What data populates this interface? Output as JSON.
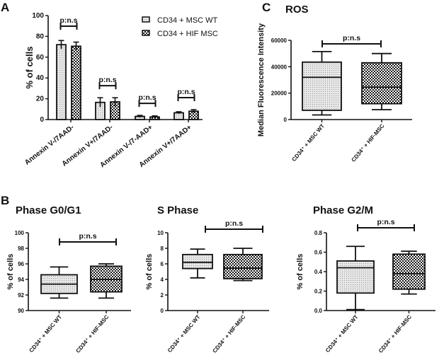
{
  "panel_labels": {
    "A": "A",
    "B": "B",
    "C": "C"
  },
  "colors": {
    "ink": "#111111",
    "wt_fill": "#d9d9d9",
    "hif_fill": "#1a1a1a"
  },
  "chart_data": [
    {
      "id": "A",
      "type": "bar",
      "title": "",
      "ylabel": "% of cells",
      "xlabel": "",
      "ylim": [
        0,
        100
      ],
      "yticks": [
        0,
        20,
        40,
        60,
        80,
        100
      ],
      "categories": [
        "Annexin V-/7AAD-",
        "Annexin V+/7AAD-",
        "Annexin V-/7-AAD+",
        "Annexin V+/7AAD+"
      ],
      "series": [
        {
          "name": "CD34 + MSC WT",
          "pattern": "dotted-gray",
          "values": [
            72,
            16.5,
            3,
            6.5
          ],
          "errors": [
            4,
            4.5,
            1,
            1
          ]
        },
        {
          "name": "CD34 + HIF MSC",
          "pattern": "checkerboard",
          "values": [
            70.5,
            17,
            2.5,
            8
          ],
          "errors": [
            4,
            4,
            1,
            1.5
          ]
        }
      ],
      "annotations": [
        "p:n.s",
        "p:n.s",
        "p:n.s",
        "p:n.s"
      ],
      "legend": "top-right",
      "grid": false
    },
    {
      "id": "C",
      "type": "box",
      "title": "ROS",
      "ylabel": "Median Fluorescence Intensity",
      "ylim": [
        0,
        60000
      ],
      "yticks": [
        0,
        20000,
        40000,
        60000
      ],
      "categories": [
        "CD34⁺ + MSC WT",
        "CD34⁺ + HIF-MSC"
      ],
      "boxes": [
        {
          "min": 3500,
          "q1": 7000,
          "median": 32000,
          "q3": 43500,
          "max": 51500
        },
        {
          "min": 7500,
          "q1": 12000,
          "median": 24500,
          "q3": 43000,
          "max": 50000
        }
      ],
      "annotation": "p:n.s",
      "grid": false
    },
    {
      "id": "B1",
      "type": "box",
      "title": "Phase G0/G1",
      "ylabel": "% of cells",
      "ylim": [
        90,
        100
      ],
      "yticks": [
        90,
        92,
        94,
        96,
        98,
        100
      ],
      "categories": [
        "CD34⁺ + MSC WT",
        "CD34⁺ + HIF-MSC"
      ],
      "boxes": [
        {
          "min": 91.6,
          "q1": 92.2,
          "median": 93.4,
          "q3": 94.6,
          "max": 95.6
        },
        {
          "min": 91.6,
          "q1": 92.4,
          "median": 94.0,
          "q3": 95.7,
          "max": 96.0
        }
      ],
      "annotation": "p:n.s",
      "grid": false
    },
    {
      "id": "B2",
      "type": "box",
      "title": "S Phase",
      "ylabel": "% of cells",
      "ylim": [
        0,
        10
      ],
      "yticks": [
        0,
        2,
        4,
        6,
        8,
        10
      ],
      "categories": [
        "CD34⁺ + MSC WT",
        "CD34⁺ + HIF-MSC"
      ],
      "boxes": [
        {
          "min": 4.2,
          "q1": 5.4,
          "median": 6.2,
          "q3": 7.2,
          "max": 7.9
        },
        {
          "min": 3.85,
          "q1": 4.1,
          "median": 5.45,
          "q3": 7.2,
          "max": 8.0
        }
      ],
      "annotation": "p:n.s",
      "grid": false
    },
    {
      "id": "B3",
      "type": "box",
      "title": "Phase G2/M",
      "ylabel": "% of cells",
      "ylim": [
        0,
        0.8
      ],
      "yticks": [
        0.0,
        0.2,
        0.4,
        0.6,
        0.8
      ],
      "ytick_labels": [
        "0.0",
        "0.2",
        "0.4",
        "0.6",
        "0.8"
      ],
      "categories": [
        "CD34⁺ + MSC WT",
        "CD34⁺ + HIF-MSC"
      ],
      "boxes": [
        {
          "min": 0.01,
          "q1": 0.18,
          "median": 0.44,
          "q3": 0.51,
          "max": 0.66
        },
        {
          "min": 0.17,
          "q1": 0.22,
          "median": 0.38,
          "q3": 0.58,
          "max": 0.61
        }
      ],
      "annotation": "p:n.s",
      "grid": false
    }
  ]
}
